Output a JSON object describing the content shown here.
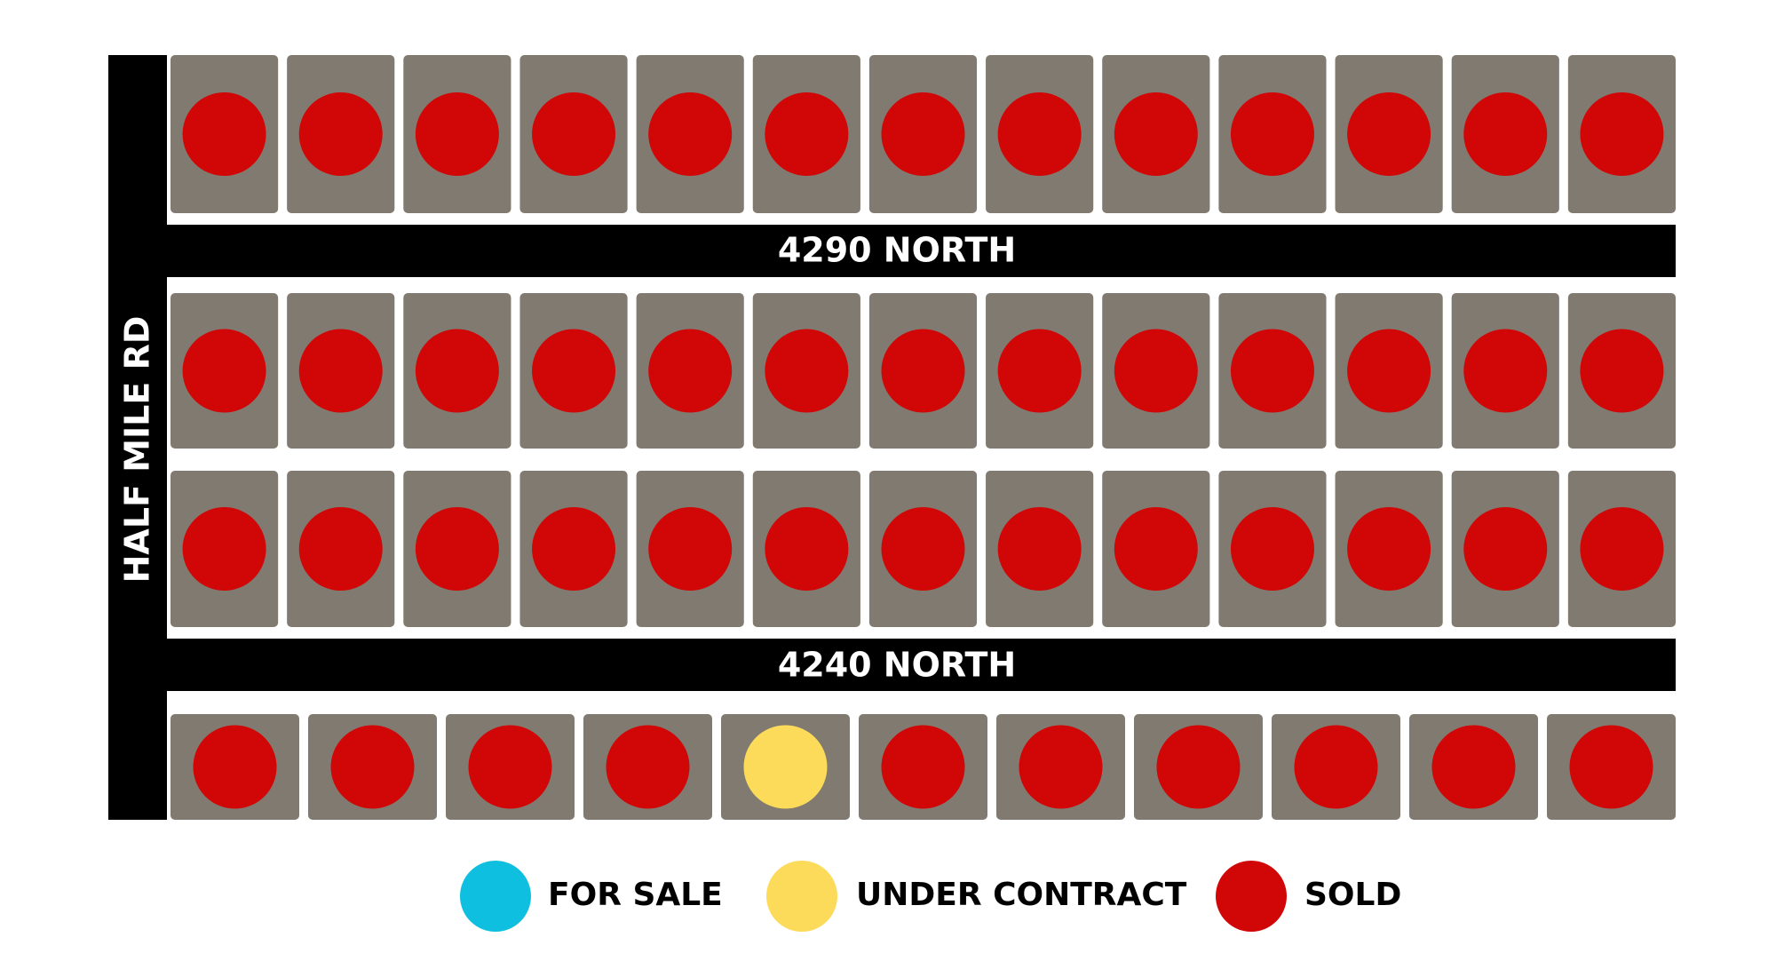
{
  "roads": {
    "vertical": "HALF MILE RD",
    "upper": "4290 NORTH",
    "lower": "4240 NORTH"
  },
  "legend": [
    {
      "label": "FOR SALE",
      "color": "#0fbfdf"
    },
    {
      "label": "UNDER CONTRACT",
      "color": "#fcdb5a"
    },
    {
      "label": "SOLD",
      "color": "#d10606"
    }
  ],
  "lots": [
    [
      2,
      2,
      2,
      2,
      2,
      2,
      2,
      2,
      2,
      2,
      2,
      2,
      2
    ],
    [
      2,
      2,
      2,
      2,
      2,
      2,
      2,
      2,
      2,
      2,
      2,
      2,
      2
    ],
    [
      2,
      2,
      2,
      2,
      2,
      2,
      2,
      2,
      2,
      2,
      2,
      2,
      2
    ],
    [
      2,
      2,
      2,
      2,
      1,
      2,
      2,
      2,
      2,
      2,
      2
    ]
  ]
}
